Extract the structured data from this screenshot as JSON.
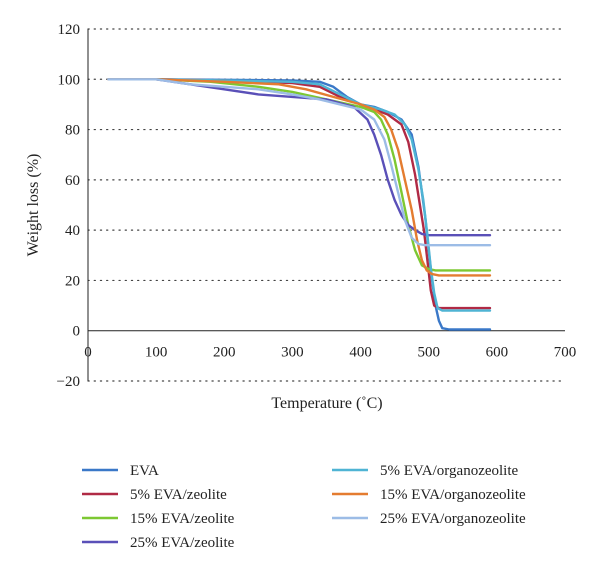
{
  "chart_data": {
    "type": "line",
    "xlabel": "Temperature (˚C)",
    "ylabel": "Weight loss (%)",
    "xlim": [
      0,
      700
    ],
    "ylim": [
      -20,
      120
    ],
    "x_ticks": [
      0,
      100,
      200,
      300,
      400,
      500,
      600,
      700
    ],
    "y_ticks": [
      -20,
      0,
      20,
      40,
      60,
      80,
      100,
      120
    ],
    "grid": "horizontal dotted",
    "legend_position": "bottom",
    "series": [
      {
        "name": "EVA",
        "color": "#3a78c8",
        "points": [
          [
            30,
            100
          ],
          [
            100,
            100
          ],
          [
            200,
            99.8
          ],
          [
            300,
            99.5
          ],
          [
            340,
            99
          ],
          [
            360,
            97
          ],
          [
            380,
            93
          ],
          [
            400,
            90
          ],
          [
            420,
            89
          ],
          [
            440,
            87
          ],
          [
            460,
            84
          ],
          [
            475,
            78
          ],
          [
            485,
            65
          ],
          [
            490,
            55
          ],
          [
            495,
            45
          ],
          [
            500,
            32
          ],
          [
            505,
            20
          ],
          [
            510,
            10
          ],
          [
            515,
            4
          ],
          [
            520,
            1
          ],
          [
            530,
            0.5
          ],
          [
            590,
            0.5
          ]
        ]
      },
      {
        "name": "5% EVA/zeolite",
        "color": "#b02a45",
        "points": [
          [
            30,
            100
          ],
          [
            100,
            100
          ],
          [
            200,
            99.5
          ],
          [
            300,
            98.5
          ],
          [
            340,
            97
          ],
          [
            370,
            93
          ],
          [
            400,
            90
          ],
          [
            420,
            88
          ],
          [
            440,
            86
          ],
          [
            460,
            82
          ],
          [
            470,
            75
          ],
          [
            480,
            62
          ],
          [
            487,
            50
          ],
          [
            493,
            40
          ],
          [
            498,
            28
          ],
          [
            503,
            16
          ],
          [
            508,
            10
          ],
          [
            515,
            9
          ],
          [
            590,
            9
          ]
        ]
      },
      {
        "name": "15% EVA/zeolite",
        "color": "#7dc832",
        "points": [
          [
            30,
            100
          ],
          [
            100,
            100
          ],
          [
            180,
            99
          ],
          [
            250,
            97
          ],
          [
            300,
            95
          ],
          [
            350,
            92
          ],
          [
            400,
            89
          ],
          [
            420,
            87
          ],
          [
            430,
            84
          ],
          [
            440,
            78
          ],
          [
            450,
            68
          ],
          [
            460,
            55
          ],
          [
            470,
            42
          ],
          [
            480,
            32
          ],
          [
            490,
            26
          ],
          [
            500,
            24.5
          ],
          [
            510,
            24
          ],
          [
            590,
            24
          ]
        ]
      },
      {
        "name": "25% EVA/zeolite",
        "color": "#5a50b8",
        "points": [
          [
            30,
            100
          ],
          [
            100,
            100
          ],
          [
            150,
            98
          ],
          [
            200,
            96
          ],
          [
            250,
            94
          ],
          [
            300,
            93
          ],
          [
            350,
            92
          ],
          [
            390,
            89
          ],
          [
            410,
            84
          ],
          [
            420,
            78
          ],
          [
            430,
            70
          ],
          [
            440,
            60
          ],
          [
            450,
            52
          ],
          [
            460,
            46
          ],
          [
            470,
            42
          ],
          [
            480,
            40
          ],
          [
            490,
            38.5
          ],
          [
            500,
            38
          ],
          [
            590,
            38
          ]
        ]
      },
      {
        "name": "5% EVA/organozeolite",
        "color": "#4fb4d4",
        "points": [
          [
            30,
            100
          ],
          [
            100,
            100
          ],
          [
            200,
            99.5
          ],
          [
            300,
            99
          ],
          [
            340,
            98
          ],
          [
            370,
            94
          ],
          [
            400,
            90
          ],
          [
            430,
            88
          ],
          [
            450,
            86
          ],
          [
            465,
            82
          ],
          [
            475,
            76
          ],
          [
            485,
            64
          ],
          [
            492,
            52
          ],
          [
            498,
            38
          ],
          [
            503,
            25
          ],
          [
            508,
            15
          ],
          [
            513,
            9
          ],
          [
            520,
            8
          ],
          [
            590,
            8
          ]
        ]
      },
      {
        "name": "15% EVA/organozeolite",
        "color": "#e47c30",
        "points": [
          [
            30,
            100
          ],
          [
            100,
            100
          ],
          [
            200,
            99
          ],
          [
            280,
            98
          ],
          [
            320,
            96
          ],
          [
            360,
            93
          ],
          [
            400,
            90
          ],
          [
            420,
            88
          ],
          [
            435,
            85
          ],
          [
            445,
            80
          ],
          [
            455,
            72
          ],
          [
            465,
            60
          ],
          [
            475,
            48
          ],
          [
            483,
            36
          ],
          [
            490,
            28
          ],
          [
            497,
            24
          ],
          [
            505,
            22.5
          ],
          [
            515,
            22
          ],
          [
            590,
            22
          ]
        ]
      },
      {
        "name": "25% EVA/organozeolite",
        "color": "#9cbce6",
        "points": [
          [
            30,
            100
          ],
          [
            100,
            100
          ],
          [
            150,
            98
          ],
          [
            200,
            97
          ],
          [
            250,
            96
          ],
          [
            300,
            94
          ],
          [
            340,
            92
          ],
          [
            370,
            90
          ],
          [
            400,
            88
          ],
          [
            420,
            84
          ],
          [
            435,
            76
          ],
          [
            445,
            66
          ],
          [
            455,
            55
          ],
          [
            465,
            44
          ],
          [
            475,
            37
          ],
          [
            485,
            34.5
          ],
          [
            495,
            34
          ],
          [
            590,
            34
          ]
        ]
      }
    ]
  }
}
